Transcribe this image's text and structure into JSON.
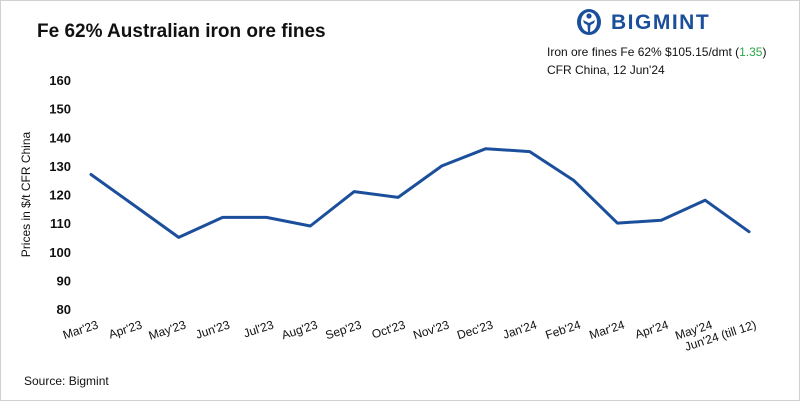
{
  "header": {
    "title": "Fe 62% Australian iron ore fines",
    "brand": "BIGMINT",
    "info_line1_prefix": "Iron ore fines Fe 62% $105.15/dmt (",
    "info_change": "1.35",
    "info_line1_suffix": ")",
    "info_line2": "CFR China, 12 Jun'24"
  },
  "footer": {
    "source": "Source: Bigmint"
  },
  "colors": {
    "line": "#1b4f9c",
    "change_positive": "#2aa64a",
    "brand": "#1b4f9c"
  },
  "chart_data": {
    "type": "line",
    "title": "Fe 62% Australian iron ore fines",
    "xlabel": "",
    "ylabel": "Prices in $/t CFR China",
    "ylim": [
      80,
      160
    ],
    "yticks": [
      80,
      90,
      100,
      110,
      120,
      130,
      140,
      150,
      160
    ],
    "grid": false,
    "categories": [
      "Mar'23",
      "Apr'23",
      "May'23",
      "Jun'23",
      "Jul'23",
      "Aug'23",
      "Sep'23",
      "Oct'23",
      "Nov'23",
      "Dec'23",
      "Jan'24",
      "Feb'24",
      "Mar'24",
      "Apr'24",
      "May'24",
      "Jun'24 (till 12)"
    ],
    "values": [
      127,
      116,
      105,
      112,
      112,
      109,
      121,
      119,
      130,
      136,
      135,
      125,
      110,
      111,
      118,
      107
    ]
  }
}
